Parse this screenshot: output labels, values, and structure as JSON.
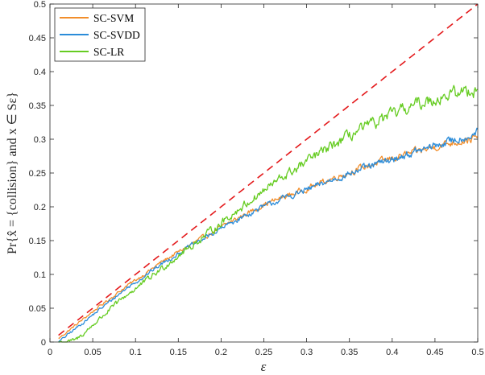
{
  "chart_data": {
    "type": "line",
    "title": "",
    "xlabel": "ε",
    "ylabel": "Pr{x̂ = {collision} and x ∈ Sε}",
    "xlim": [
      0,
      0.5
    ],
    "ylim": [
      0,
      0.5
    ],
    "x_ticks": [
      "0",
      "0.05",
      "0.1",
      "0.15",
      "0.2",
      "0.25",
      "0.3",
      "0.35",
      "0.4",
      "0.45",
      "0.5"
    ],
    "y_ticks": [
      "0",
      "0.05",
      "0.1",
      "0.15",
      "0.2",
      "0.25",
      "0.3",
      "0.35",
      "0.4",
      "0.45",
      "0.5"
    ],
    "grid": false,
    "legend_position": "top-left",
    "reference_line": {
      "style": "dashed",
      "color": "#e41a1c",
      "x": [
        0.01,
        0.5
      ],
      "y": [
        0.01,
        0.5
      ]
    },
    "series": [
      {
        "name": "SC-SVM",
        "color": "#f28e2b",
        "x": [
          0.01,
          0.03,
          0.05,
          0.07,
          0.09,
          0.11,
          0.13,
          0.15,
          0.17,
          0.19,
          0.21,
          0.23,
          0.25,
          0.27,
          0.29,
          0.31,
          0.33,
          0.35,
          0.37,
          0.39,
          0.41,
          0.43,
          0.45,
          0.47,
          0.49,
          0.5
        ],
        "y": [
          0.005,
          0.025,
          0.045,
          0.064,
          0.083,
          0.1,
          0.118,
          0.133,
          0.148,
          0.162,
          0.177,
          0.19,
          0.203,
          0.213,
          0.222,
          0.232,
          0.242,
          0.251,
          0.26,
          0.268,
          0.275,
          0.282,
          0.289,
          0.295,
          0.3,
          0.302
        ]
      },
      {
        "name": "SC-SVDD",
        "color": "#2b8cd9",
        "x": [
          0.01,
          0.03,
          0.05,
          0.07,
          0.09,
          0.11,
          0.13,
          0.15,
          0.17,
          0.19,
          0.21,
          0.23,
          0.25,
          0.27,
          0.29,
          0.31,
          0.33,
          0.35,
          0.37,
          0.39,
          0.41,
          0.43,
          0.45,
          0.47,
          0.49,
          0.5
        ],
        "y": [
          0.0,
          0.02,
          0.04,
          0.06,
          0.08,
          0.097,
          0.115,
          0.131,
          0.146,
          0.16,
          0.175,
          0.188,
          0.2,
          0.211,
          0.22,
          0.23,
          0.24,
          0.249,
          0.258,
          0.266,
          0.274,
          0.282,
          0.29,
          0.298,
          0.305,
          0.31
        ]
      },
      {
        "name": "SC-LR",
        "color": "#66cc22",
        "x": [
          0.01,
          0.02,
          0.03,
          0.04,
          0.05,
          0.07,
          0.09,
          0.11,
          0.13,
          0.15,
          0.17,
          0.19,
          0.21,
          0.23,
          0.25,
          0.27,
          0.29,
          0.31,
          0.33,
          0.35,
          0.37,
          0.39,
          0.41,
          0.43,
          0.45,
          0.47,
          0.49,
          0.5
        ],
        "y": [
          0.0,
          0.0,
          0.003,
          0.013,
          0.025,
          0.048,
          0.07,
          0.088,
          0.108,
          0.128,
          0.146,
          0.166,
          0.186,
          0.205,
          0.224,
          0.242,
          0.258,
          0.275,
          0.29,
          0.305,
          0.318,
          0.33,
          0.342,
          0.352,
          0.36,
          0.367,
          0.372,
          0.374
        ]
      }
    ]
  }
}
